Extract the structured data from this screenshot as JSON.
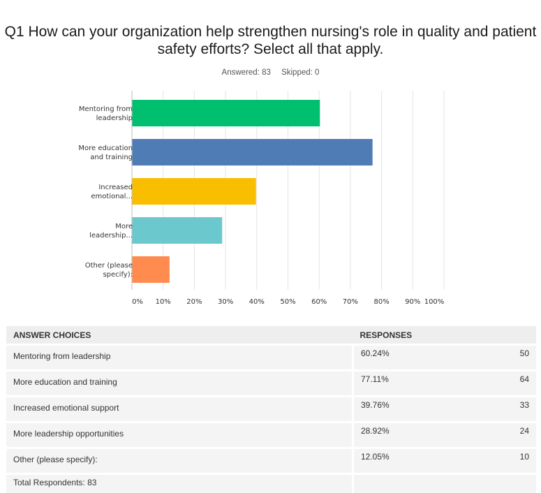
{
  "question": {
    "title": "Q1 How can your organization help strengthen nursing's role in quality and patient safety efforts? Select all that apply."
  },
  "stats": {
    "answered": "Answered: 83",
    "skipped": "Skipped: 0"
  },
  "chart_data": {
    "type": "bar",
    "orientation": "horizontal",
    "categories": [
      [
        "Mentoring from",
        "leadership"
      ],
      [
        "More education",
        "and training"
      ],
      [
        "Increased",
        "emotional..."
      ],
      [
        "More",
        "leadership..."
      ],
      [
        "Other (please",
        "specify):"
      ]
    ],
    "values": [
      60.24,
      77.11,
      39.76,
      28.92,
      12.05
    ],
    "colors": [
      "#00bf6f",
      "#507cb6",
      "#f9be00",
      "#6bc8cd",
      "#ff8b4f"
    ],
    "xlim": [
      0,
      100
    ],
    "xticks": [
      "0%",
      "10%",
      "20%",
      "30%",
      "40%",
      "50%",
      "60%",
      "70%",
      "80%",
      "90%",
      "100%"
    ],
    "grid": true
  },
  "table": {
    "headers": {
      "choice": "ANSWER CHOICES",
      "responses": "RESPONSES"
    },
    "rows": [
      {
        "choice": "Mentoring from leadership",
        "pct": "60.24%",
        "count": "50"
      },
      {
        "choice": "More education and training",
        "pct": "77.11%",
        "count": "64"
      },
      {
        "choice": "Increased emotional support",
        "pct": "39.76%",
        "count": "33"
      },
      {
        "choice": "More leadership opportunities",
        "pct": "28.92%",
        "count": "24"
      },
      {
        "choice": "Other (please specify):",
        "pct": "12.05%",
        "count": "10"
      }
    ],
    "total": "Total Respondents: 83"
  }
}
